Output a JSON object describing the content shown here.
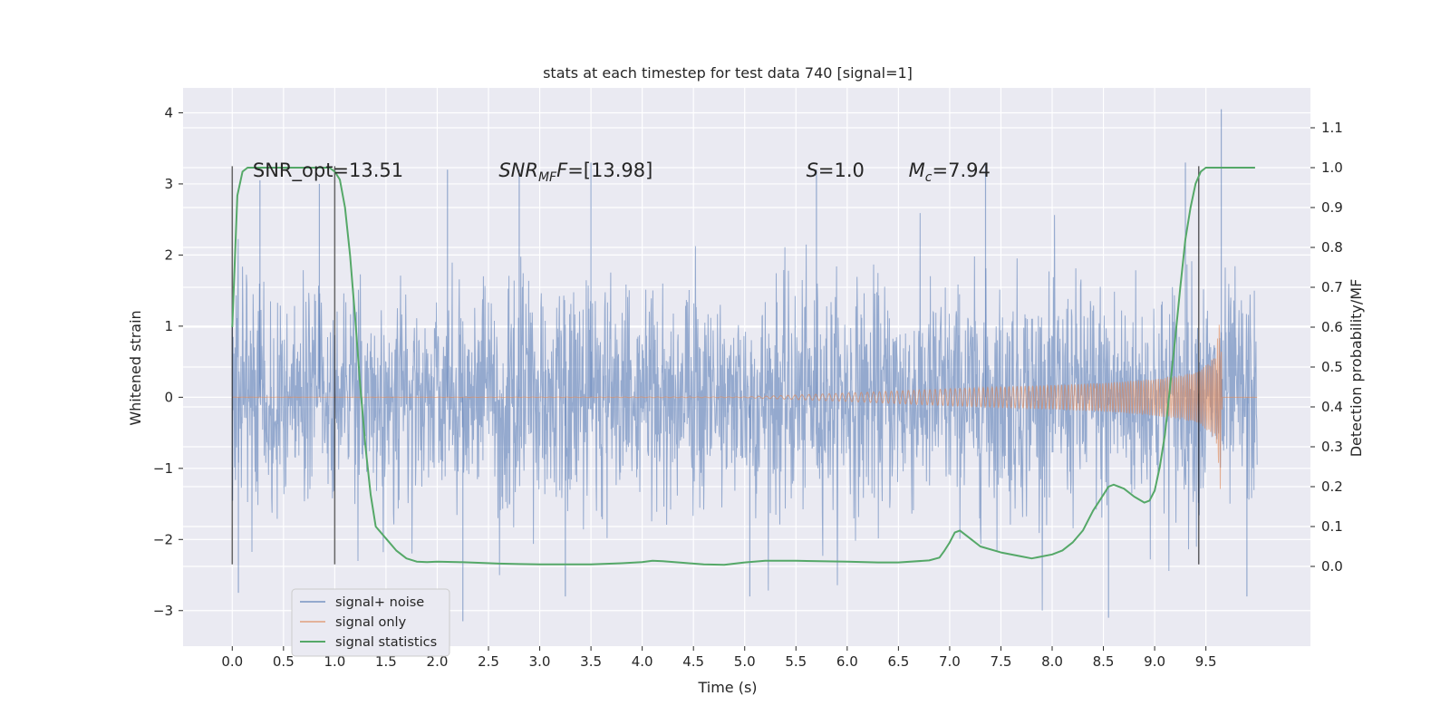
{
  "chart_data": {
    "type": "line",
    "title": "stats at each timestep for test data 740 [signal=1]",
    "xlabel": "Time (s)",
    "ylabel": "Whitened strain",
    "ylabel_right": "Detection probability/MF",
    "xlim": [
      -0.48,
      10.52
    ],
    "ylim": [
      -3.5,
      4.35
    ],
    "ylim_right": [
      -0.2,
      1.2
    ],
    "x_ticks": [
      "0.0",
      "0.5",
      "1.0",
      "1.5",
      "2.0",
      "2.5",
      "3.0",
      "3.5",
      "4.0",
      "4.5",
      "5.0",
      "5.5",
      "6.0",
      "6.5",
      "7.0",
      "7.5",
      "8.0",
      "8.5",
      "9.0",
      "9.5"
    ],
    "x_tick_values": [
      0.0,
      0.5,
      1.0,
      1.5,
      2.0,
      2.5,
      3.0,
      3.5,
      4.0,
      4.5,
      5.0,
      5.5,
      6.0,
      6.5,
      7.0,
      7.5,
      8.0,
      8.5,
      9.0,
      9.5
    ],
    "y_ticks": [
      "−3",
      "−2",
      "−1",
      "0",
      "1",
      "2",
      "3",
      "4"
    ],
    "y_tick_values": [
      -3,
      -2,
      -1,
      0,
      1,
      2,
      3,
      4
    ],
    "y_right_ticks": [
      "0.0",
      "0.1",
      "0.2",
      "0.3",
      "0.4",
      "0.5",
      "0.6",
      "0.7",
      "0.8",
      "0.9",
      "1.0",
      "1.1"
    ],
    "y_right_tick_values": [
      0.0,
      0.1,
      0.2,
      0.3,
      0.4,
      0.5,
      0.6,
      0.7,
      0.8,
      0.9,
      1.0,
      1.1
    ],
    "grid": true,
    "legend_position": "lower-left",
    "series": [
      {
        "name": "signal+ noise",
        "axis": "left",
        "color": "#4c72b0",
        "x_range": [
          0.0,
          10.0
        ],
        "noise_std_approx": 1.0,
        "notable_peaks": [
          {
            "x": 0.27,
            "y": 3.05
          },
          {
            "x": 0.85,
            "y": 3.0
          },
          {
            "x": 2.1,
            "y": 3.2
          },
          {
            "x": 2.8,
            "y": 3.2
          },
          {
            "x": 3.5,
            "y": 3.3
          },
          {
            "x": 5.7,
            "y": 3.2
          },
          {
            "x": 7.35,
            "y": 3.3
          },
          {
            "x": 9.3,
            "y": 3.3
          },
          {
            "x": 9.65,
            "y": 4.05
          }
        ],
        "notable_troughs": [
          {
            "x": 0.06,
            "y": -2.75
          },
          {
            "x": 2.25,
            "y": -3.15
          },
          {
            "x": 3.25,
            "y": -2.8
          },
          {
            "x": 5.05,
            "y": -2.8
          },
          {
            "x": 8.55,
            "y": -3.1
          },
          {
            "x": 9.9,
            "y": -2.8
          }
        ]
      },
      {
        "name": "signal only",
        "axis": "left",
        "color": "#dd8452",
        "description_points": {
          "x": [
            0.0,
            5.0,
            6.0,
            7.0,
            8.0,
            8.5,
            9.0,
            9.3,
            9.5,
            9.6,
            9.64,
            9.66,
            9.7,
            10.0
          ],
          "envelope": [
            0.0,
            0.005,
            0.06,
            0.12,
            0.17,
            0.2,
            0.26,
            0.32,
            0.45,
            0.6,
            1.3,
            0.0,
            0.0,
            0.0
          ]
        }
      },
      {
        "name": "signal statistics",
        "axis": "right",
        "color": "#55a868",
        "x": [
          0.0,
          0.05,
          0.1,
          0.15,
          0.2,
          0.25,
          0.3,
          0.35,
          0.4,
          0.5,
          0.6,
          0.7,
          0.8,
          0.9,
          0.95,
          1.0,
          1.05,
          1.1,
          1.15,
          1.2,
          1.25,
          1.3,
          1.35,
          1.4,
          1.5,
          1.6,
          1.7,
          1.8,
          1.9,
          2.0,
          2.2,
          2.4,
          2.6,
          2.8,
          3.0,
          3.5,
          3.8,
          4.0,
          4.1,
          4.2,
          4.4,
          4.6,
          4.8,
          5.0,
          5.2,
          5.5,
          6.0,
          6.3,
          6.5,
          6.8,
          6.9,
          6.95,
          7.0,
          7.05,
          7.1,
          7.2,
          7.3,
          7.5,
          7.7,
          7.8,
          8.0,
          8.1,
          8.2,
          8.3,
          8.4,
          8.5,
          8.55,
          8.6,
          8.7,
          8.8,
          8.9,
          8.95,
          9.0,
          9.05,
          9.1,
          9.15,
          9.2,
          9.25,
          9.3,
          9.35,
          9.4,
          9.45,
          9.5,
          9.55,
          9.6,
          9.65,
          9.7,
          9.8,
          9.9,
          9.98
        ],
        "values": [
          0.6,
          0.93,
          0.99,
          1.0,
          1.0,
          1.0,
          1.0,
          1.0,
          1.0,
          1.0,
          1.0,
          1.0,
          1.0,
          1.0,
          1.0,
          0.99,
          0.97,
          0.9,
          0.78,
          0.62,
          0.45,
          0.3,
          0.18,
          0.1,
          0.07,
          0.04,
          0.02,
          0.012,
          0.011,
          0.012,
          0.011,
          0.009,
          0.007,
          0.006,
          0.005,
          0.005,
          0.008,
          0.011,
          0.014,
          0.013,
          0.009,
          0.005,
          0.004,
          0.01,
          0.014,
          0.014,
          0.012,
          0.01,
          0.01,
          0.015,
          0.022,
          0.04,
          0.06,
          0.085,
          0.09,
          0.07,
          0.05,
          0.035,
          0.025,
          0.02,
          0.03,
          0.04,
          0.06,
          0.09,
          0.14,
          0.18,
          0.2,
          0.205,
          0.195,
          0.175,
          0.16,
          0.165,
          0.19,
          0.25,
          0.33,
          0.45,
          0.57,
          0.7,
          0.82,
          0.9,
          0.96,
          0.99,
          1.0,
          1.0,
          1.0,
          1.0,
          1.0,
          1.0,
          1.0,
          1.0
        ]
      }
    ],
    "vertical_lines": [
      {
        "x": 0.0,
        "y_range": [
          -2.35,
          3.25
        ],
        "color": "#000000"
      },
      {
        "x": 1.0,
        "y_range": [
          -2.35,
          3.25
        ],
        "color": "#000000"
      },
      {
        "x": 9.43,
        "y_range": [
          -2.35,
          3.25
        ],
        "color": "#000000"
      }
    ],
    "annotations": [
      {
        "x": 0.2,
        "y": 3.2,
        "text": "SNR_opt=13.51"
      },
      {
        "x": 2.6,
        "y": 3.2,
        "text_base": "SNR",
        "text_sub": "MF",
        "text_tail": "F=[13.98]"
      },
      {
        "x": 5.6,
        "y": 3.2,
        "text_base": "S",
        "text_tail": "=1.0"
      },
      {
        "x": 6.6,
        "y": 3.2,
        "text_base": "M",
        "text_sub": "c",
        "text_tail": "=7.94"
      }
    ]
  }
}
